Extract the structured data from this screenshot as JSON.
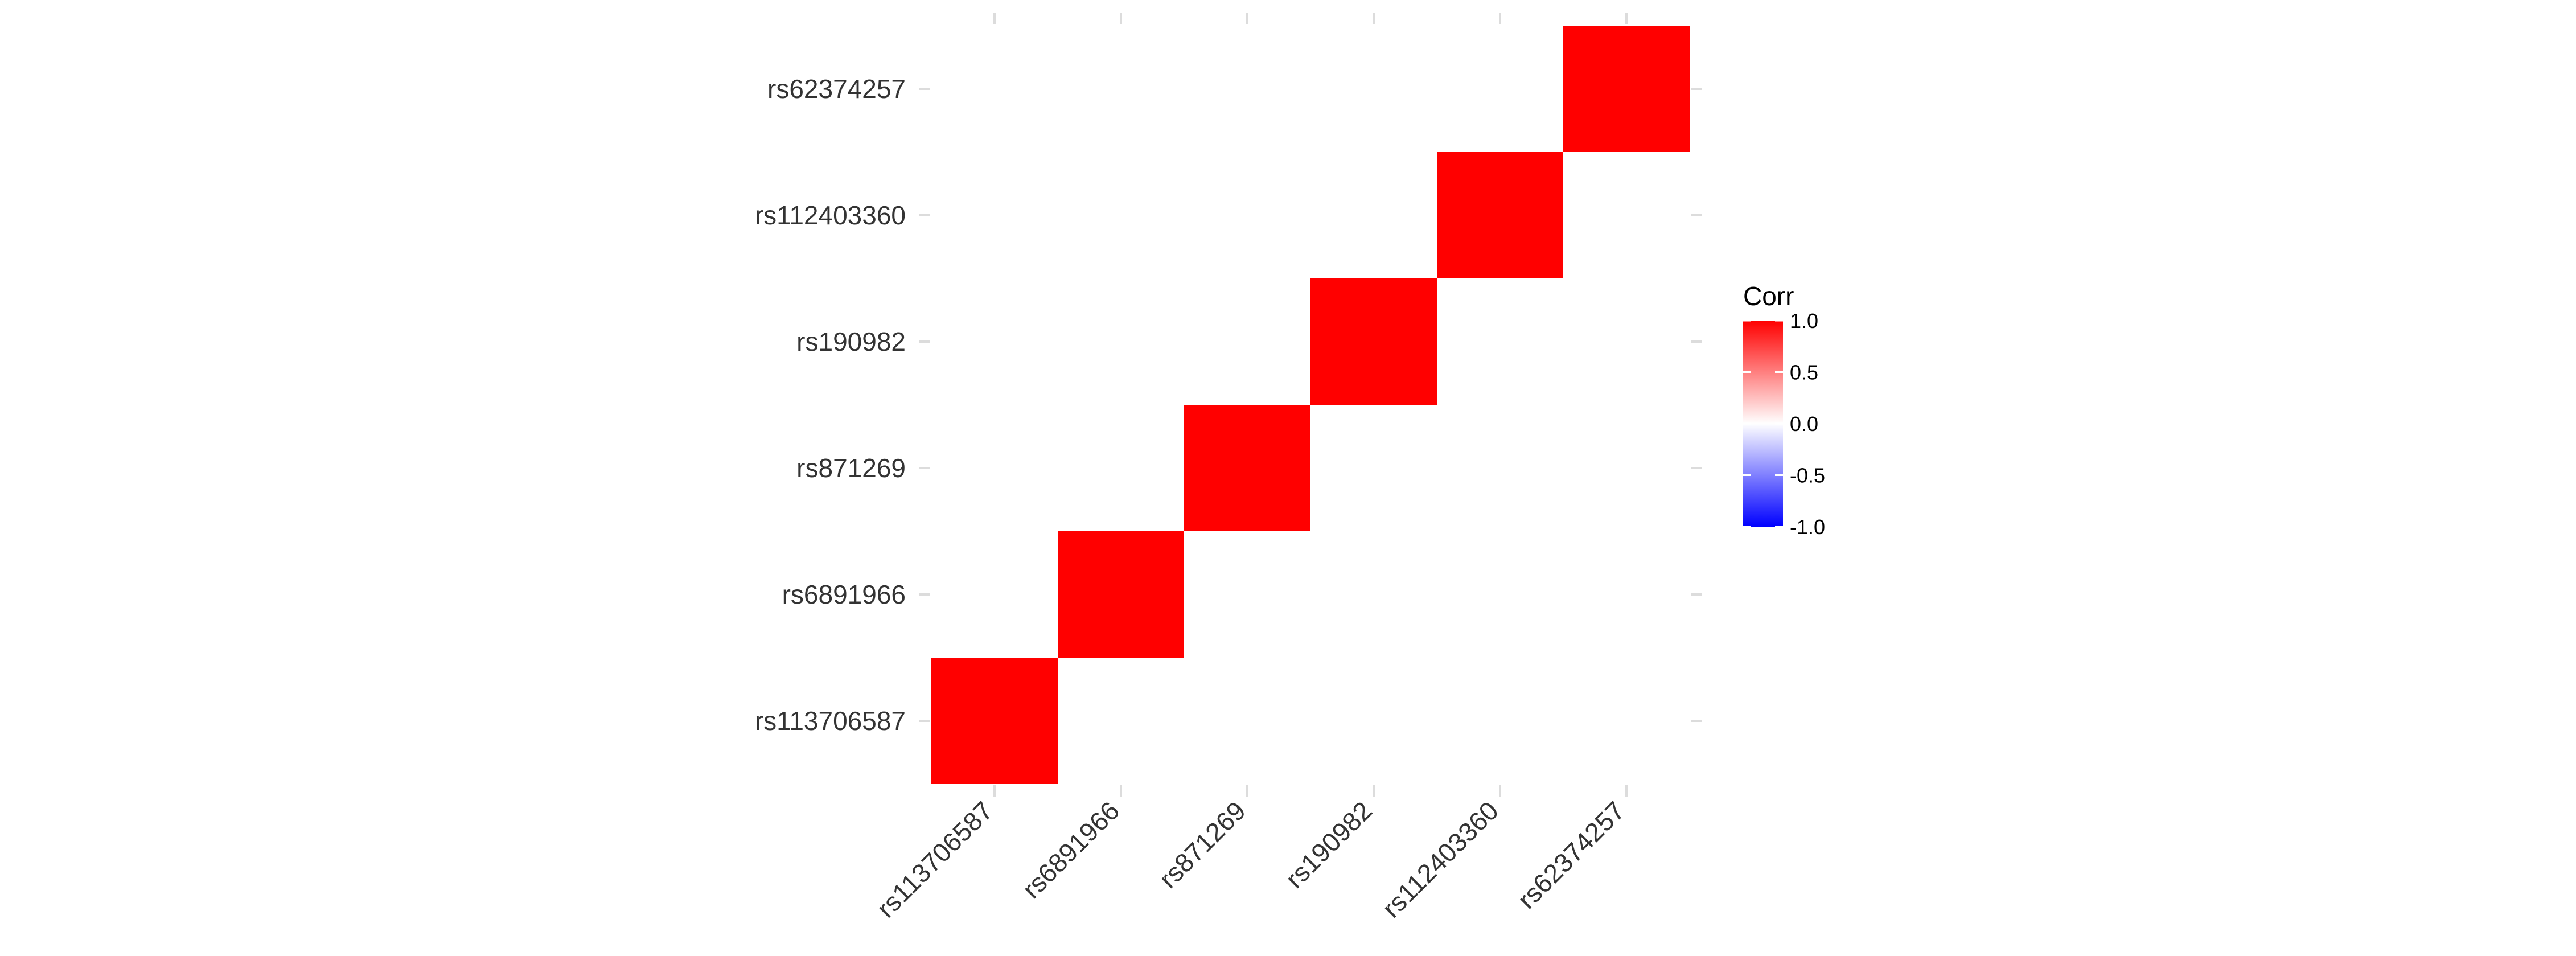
{
  "chart_data": {
    "type": "heatmap",
    "title": "",
    "xlabel": "",
    "ylabel": "",
    "x_categories": [
      "rs113706587",
      "rs6891966",
      "rs871269",
      "rs190982",
      "rs112403360",
      "rs62374257"
    ],
    "y_categories": [
      "rs113706587",
      "rs6891966",
      "rs871269",
      "rs190982",
      "rs112403360",
      "rs62374257"
    ],
    "cells": [
      {
        "x": "rs113706587",
        "y": "rs113706587",
        "value": 1.0
      },
      {
        "x": "rs6891966",
        "y": "rs6891966",
        "value": 1.0
      },
      {
        "x": "rs871269",
        "y": "rs871269",
        "value": 1.0
      },
      {
        "x": "rs190982",
        "y": "rs190982",
        "value": 1.0
      },
      {
        "x": "rs112403360",
        "y": "rs112403360",
        "value": 1.0
      },
      {
        "x": "rs62374257",
        "y": "rs62374257",
        "value": 1.0
      }
    ],
    "legend": {
      "title": "Corr",
      "placement": "right",
      "range": [
        -1.0,
        1.0
      ],
      "ticks": [
        "1.0",
        "0.5",
        "0.0",
        "-0.5",
        "-1.0"
      ],
      "colors": {
        "low": "#0000ff",
        "mid": "#ffffff",
        "high": "#ff0000"
      }
    },
    "grid": false
  }
}
